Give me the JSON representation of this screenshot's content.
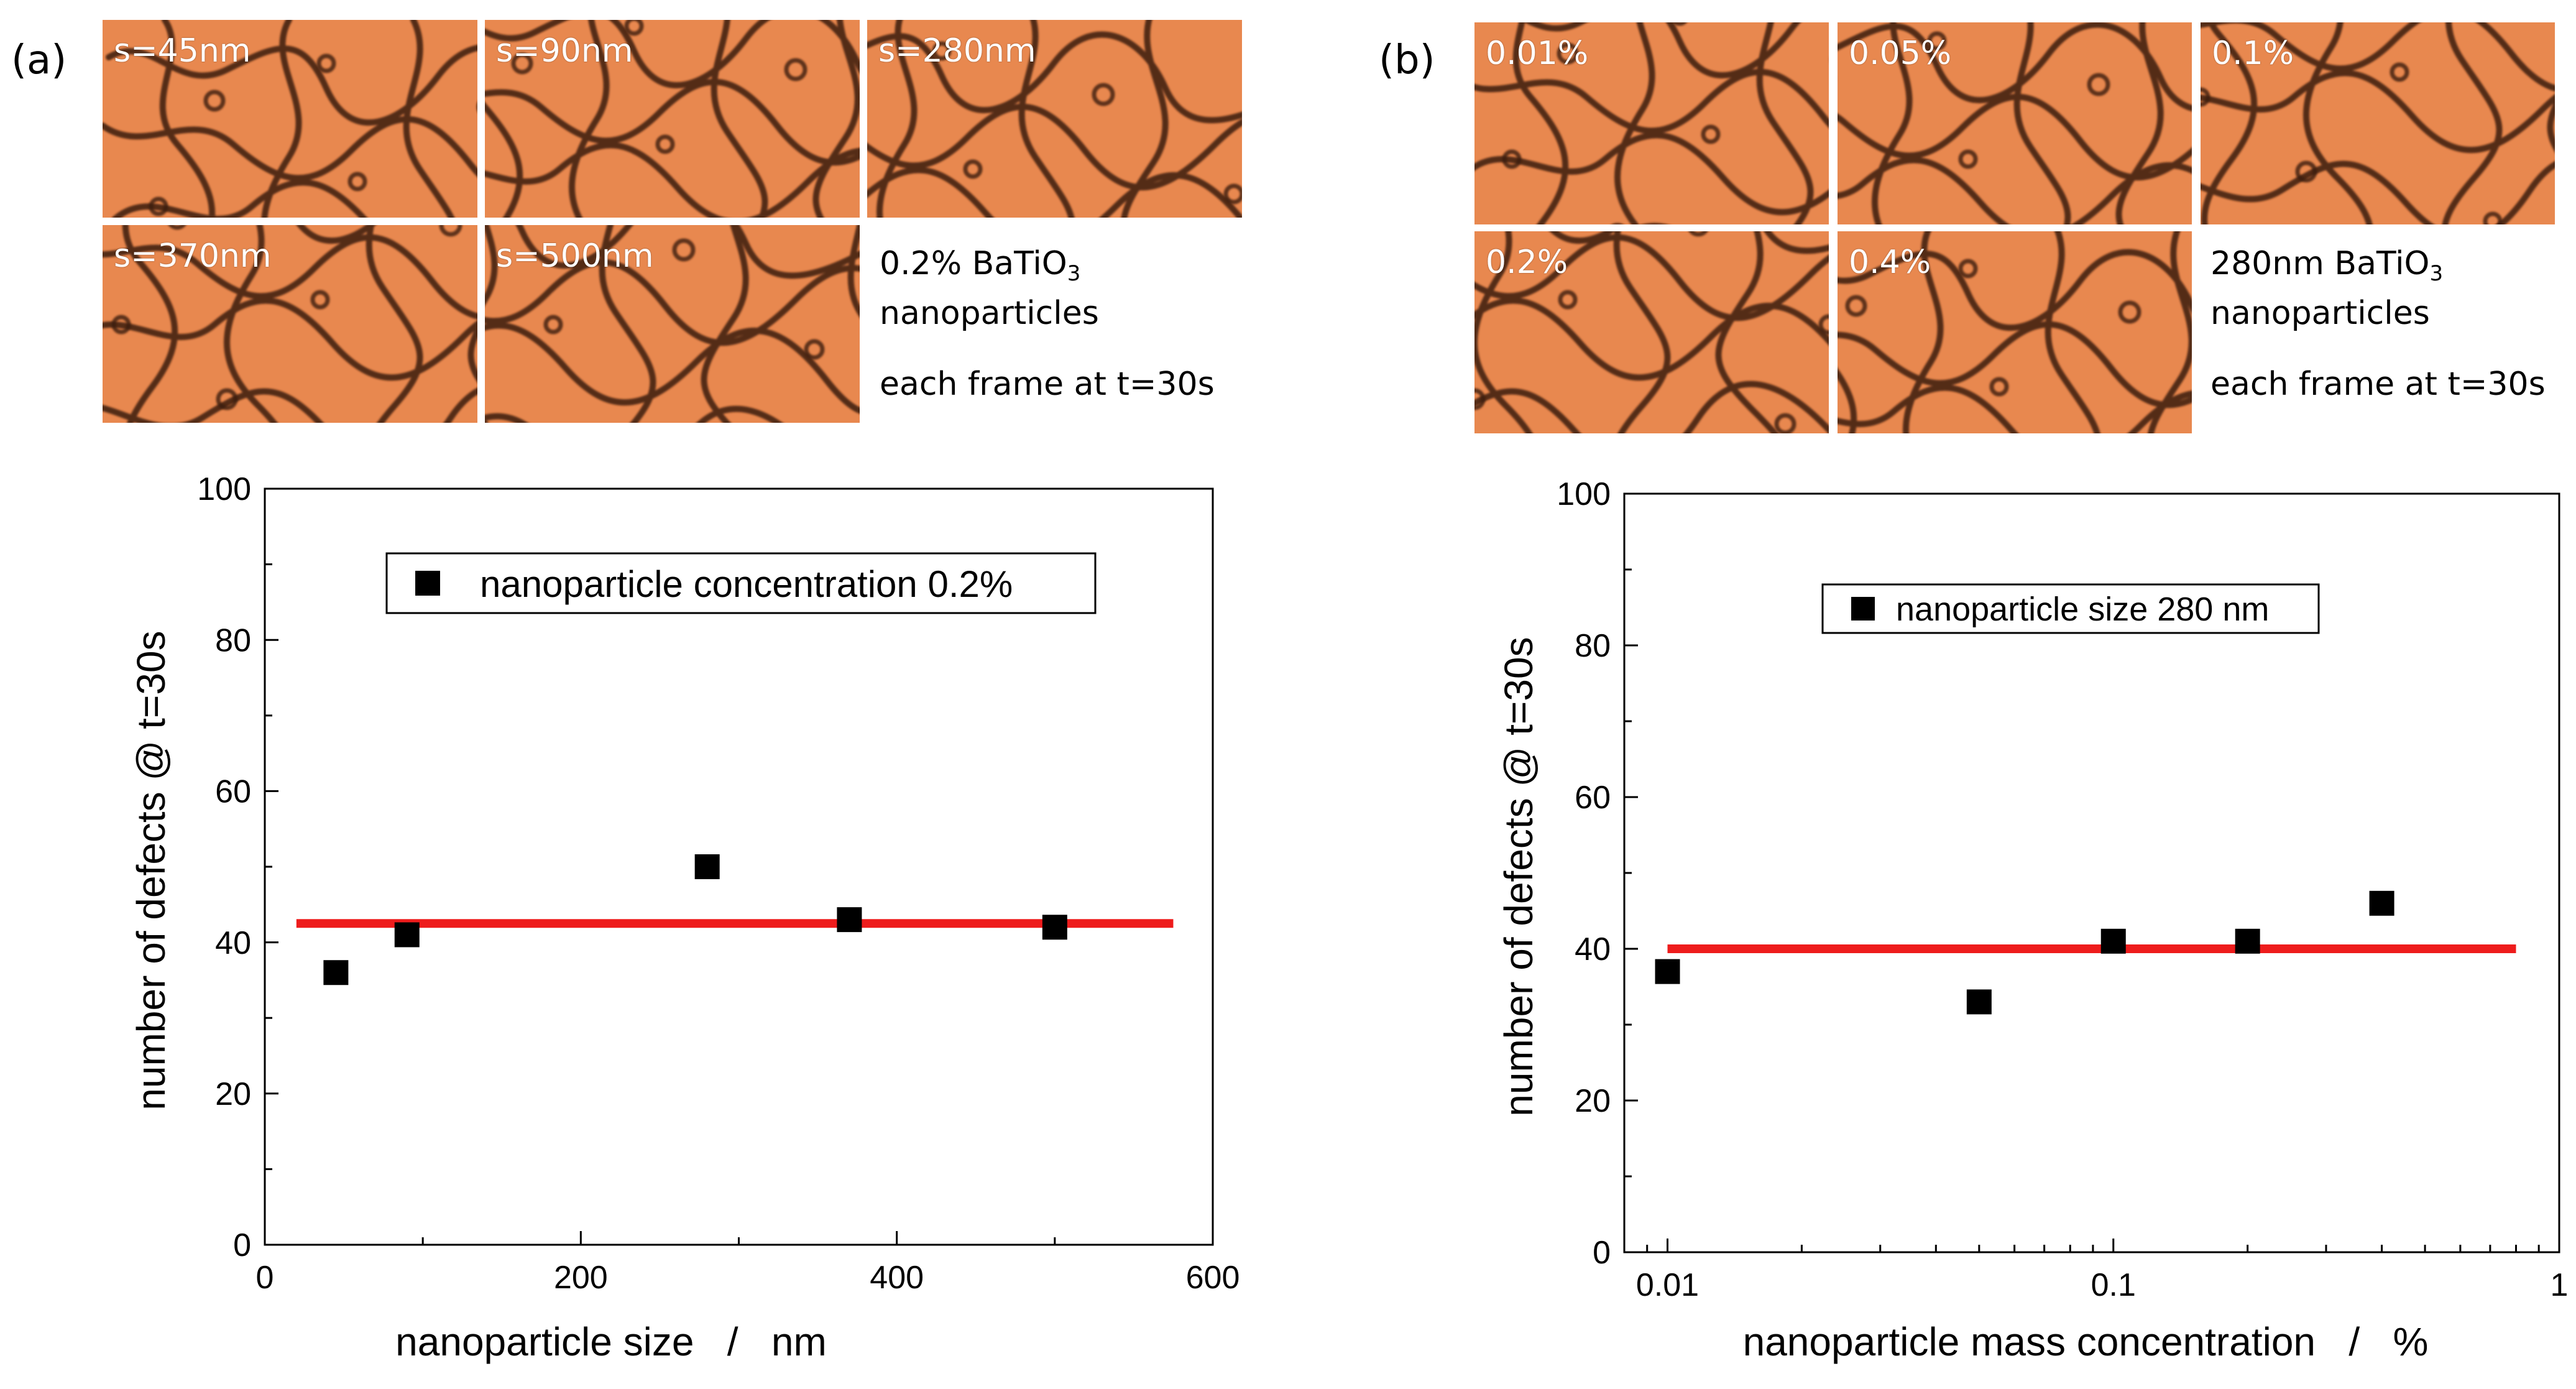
{
  "panels": [
    {
      "label": "(a)",
      "frames": [
        "s=45nm",
        "s=90nm",
        "s=280nm",
        "s=370nm",
        "s=500nm"
      ],
      "info": {
        "line1_main": "0.2% BaTiO",
        "line1_sub": "3",
        "line2": "nanoparticles",
        "line3": "each frame at t=30s"
      }
    },
    {
      "label": "(b)",
      "frames": [
        "0.01%",
        "0.05%",
        "0.1%",
        "0.2%",
        "0.4%"
      ],
      "info": {
        "line1_main": "280nm BaTiO",
        "line1_sub": "3",
        "line2": "nanoparticles",
        "line3": "each frame at t=30s"
      }
    }
  ],
  "colors": {
    "micrograph_base": "#e8884f",
    "micrograph_defect": "#3a1a0c",
    "fit_line": "#ee1c1c",
    "marker": "#000000"
  },
  "chart_data": [
    {
      "type": "scatter",
      "title": "",
      "xlabel": "nanoparticle size   /   nm",
      "ylabel": "number of defects @ t=30s",
      "xscale": "linear",
      "xlim": [
        0,
        600
      ],
      "ylim": [
        0,
        100
      ],
      "xticks": [
        "0",
        "200",
        "400",
        "600"
      ],
      "yticks": [
        "0",
        "20",
        "40",
        "60",
        "80",
        "100"
      ],
      "grid": false,
      "legend": {
        "position": "top-center",
        "entries": [
          "nanoparticle concentration 0.2%"
        ]
      },
      "series": [
        {
          "name": "nanoparticle concentration 0.2%",
          "x": [
            45,
            90,
            280,
            370,
            500
          ],
          "y": [
            36,
            41,
            50,
            43,
            42
          ]
        }
      ],
      "fit_line": {
        "x": [
          20,
          575
        ],
        "y": [
          42.5,
          42.5
        ]
      }
    },
    {
      "type": "scatter",
      "title": "",
      "xlabel": "nanoparticle mass concentration   /   %",
      "ylabel": "number of defects @ t=30s",
      "xscale": "log",
      "xlim": [
        0.008,
        1
      ],
      "ylim": [
        0,
        100
      ],
      "xticks": [
        "0.01",
        "0.1",
        "1"
      ],
      "yticks": [
        "0",
        "20",
        "40",
        "60",
        "80",
        "100"
      ],
      "grid": false,
      "legend": {
        "position": "top-center",
        "entries": [
          "nanoparticle size 280 nm"
        ]
      },
      "series": [
        {
          "name": "nanoparticle size 280 nm",
          "x": [
            0.01,
            0.05,
            0.1,
            0.2,
            0.4
          ],
          "y": [
            37,
            33,
            41,
            41,
            46
          ]
        }
      ],
      "fit_line": {
        "x": [
          0.01,
          0.8
        ],
        "y": [
          40,
          40
        ]
      }
    }
  ]
}
